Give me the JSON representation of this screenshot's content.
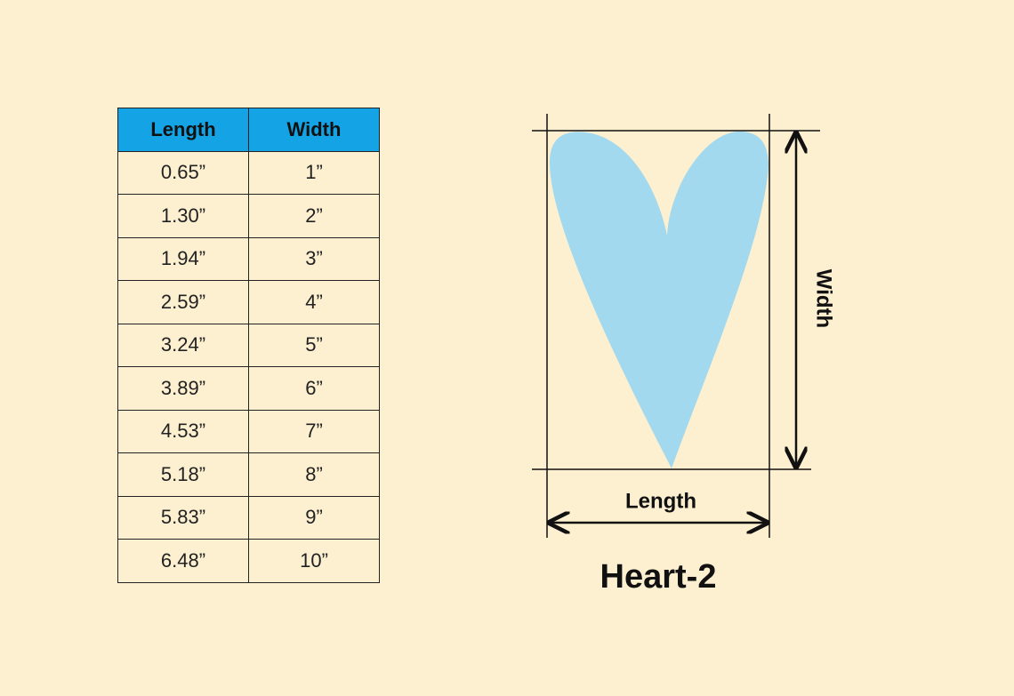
{
  "table": {
    "header": [
      "Length",
      "Width"
    ],
    "rows": [
      [
        "0.65”",
        "1”"
      ],
      [
        "1.30”",
        "2”"
      ],
      [
        "1.94”",
        "3”"
      ],
      [
        "2.59”",
        "4”"
      ],
      [
        "3.24”",
        "5”"
      ],
      [
        "3.89”",
        "6”"
      ],
      [
        "4.53”",
        "7”"
      ],
      [
        "5.18”",
        "8”"
      ],
      [
        "5.83”",
        "9”"
      ],
      [
        "6.48”",
        "10”"
      ]
    ]
  },
  "diagram": {
    "length_label": "Length",
    "width_label": "Width",
    "title": "Heart-2"
  }
}
